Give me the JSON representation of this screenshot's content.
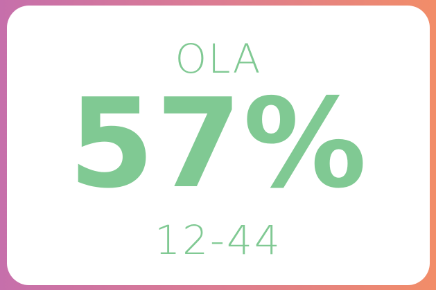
{
  "card": {
    "label": "OLA",
    "value": "57%",
    "range": "12-44"
  }
}
